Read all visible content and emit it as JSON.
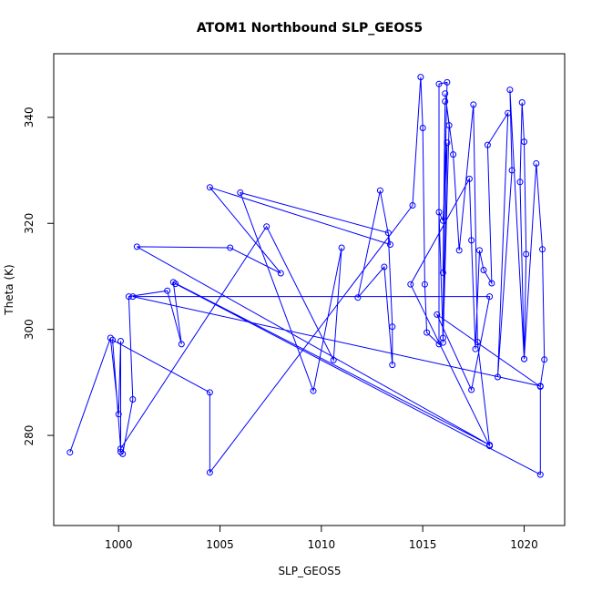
{
  "chart_data": {
    "type": "line",
    "title": "ATOM1 Northbound SLP_GEOS5",
    "xlabel": "SLP_GEOS5",
    "ylabel": "Theta (K)",
    "xlim": [
      996.8,
      1022.0
    ],
    "ylim": [
      263.0,
      352.0
    ],
    "xticks": [
      1000,
      1005,
      1010,
      1015,
      1020
    ],
    "yticks": [
      280,
      300,
      320,
      340
    ],
    "grid": false,
    "markers": "open-circle",
    "series": [
      {
        "color": "#0000ff",
        "points": [
          [
            997.6,
            276.8
          ],
          [
            999.6,
            298.4
          ],
          [
            1000.0,
            284.0
          ],
          [
            1000.1,
            297.8
          ],
          [
            1000.1,
            276.9
          ],
          [
            1000.2,
            276.5
          ],
          [
            1000.7,
            286.8
          ],
          [
            1000.5,
            306.2
          ],
          [
            1002.4,
            307.3
          ],
          [
            1003.1,
            297.2
          ],
          [
            1002.7,
            308.9
          ],
          [
            1018.3,
            278.2
          ],
          [
            1000.9,
            315.6
          ],
          [
            1005.5,
            315.4
          ],
          [
            1008.0,
            310.6
          ],
          [
            1004.5,
            326.8
          ],
          [
            1013.4,
            316.0
          ],
          [
            1012.9,
            326.2
          ],
          [
            1011.8,
            306.0
          ],
          [
            1013.1,
            311.8
          ],
          [
            1013.5,
            293.3
          ],
          [
            1013.5,
            300.5
          ],
          [
            1013.3,
            318.2
          ],
          [
            1006.0,
            325.8
          ],
          [
            1009.6,
            288.4
          ],
          [
            1011.0,
            315.4
          ],
          [
            1010.6,
            294.2
          ],
          [
            1007.3,
            319.4
          ],
          [
            1000.1,
            277.5
          ],
          [
            999.7,
            298.0
          ],
          [
            1004.5,
            288.1
          ],
          [
            1004.5,
            273.0
          ],
          [
            1014.5,
            323.4
          ],
          [
            1014.9,
            347.6
          ],
          [
            1015.0,
            338.0
          ],
          [
            1015.1,
            308.5
          ],
          [
            1015.2,
            299.4
          ],
          [
            1015.8,
            297.2
          ],
          [
            1015.8,
            346.3
          ],
          [
            1016.2,
            346.6
          ],
          [
            1016.0,
            310.7
          ],
          [
            1016.1,
            343.0
          ],
          [
            1016.0,
            298.4
          ],
          [
            1015.8,
            322.1
          ],
          [
            1016.0,
            320.5
          ],
          [
            1016.2,
            335.2
          ],
          [
            1016.0,
            297.5
          ],
          [
            1016.3,
            338.5
          ],
          [
            1016.1,
            344.5
          ],
          [
            1016.5,
            333.0
          ],
          [
            1016.8,
            314.9
          ],
          [
            1017.5,
            342.4
          ],
          [
            1017.7,
            297.6
          ],
          [
            1018.3,
            278.0
          ],
          [
            1014.4,
            308.5
          ],
          [
            1017.3,
            328.4
          ],
          [
            1017.4,
            316.8
          ],
          [
            1017.6,
            296.3
          ],
          [
            1017.8,
            314.9
          ],
          [
            1018.0,
            311.2
          ],
          [
            1018.4,
            308.7
          ],
          [
            1018.2,
            334.8
          ],
          [
            1019.2,
            340.8
          ],
          [
            1018.7,
            291.0
          ],
          [
            1019.4,
            330.0
          ],
          [
            1019.3,
            345.2
          ],
          [
            1020.0,
            294.4
          ],
          [
            1019.8,
            327.8
          ],
          [
            1019.9,
            342.8
          ],
          [
            1020.0,
            335.4
          ],
          [
            1020.1,
            314.2
          ],
          [
            1020.0,
            294.4
          ],
          [
            1020.6,
            331.3
          ],
          [
            1020.9,
            315.1
          ],
          [
            1021.0,
            294.3
          ],
          [
            1020.8,
            289.3
          ],
          [
            1000.7,
            306.2
          ],
          [
            1018.3,
            306.2
          ],
          [
            1017.4,
            288.6
          ],
          [
            1015.7,
            302.8
          ],
          [
            1020.8,
            289.2
          ],
          [
            1020.8,
            272.6
          ],
          [
            1002.8,
            308.6
          ]
        ]
      }
    ]
  }
}
